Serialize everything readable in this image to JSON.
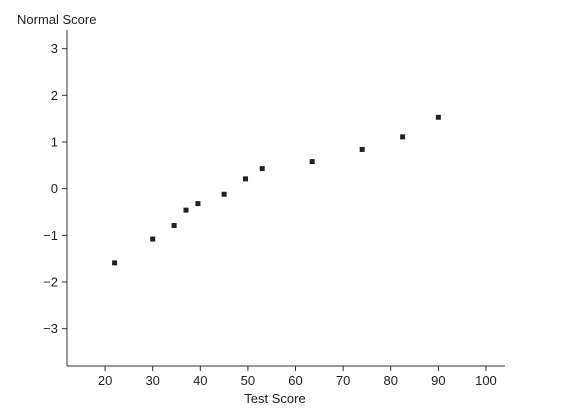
{
  "chart_data": {
    "type": "scatter",
    "title": "",
    "xlabel": "Test Score",
    "ylabel": "Normal Score",
    "xlim": [
      12,
      104
    ],
    "ylim": [
      -3.8,
      3.4
    ],
    "xticks": [
      20,
      30,
      40,
      50,
      60,
      70,
      80,
      90,
      100
    ],
    "xtick_labels": [
      "20",
      "30",
      "40",
      "50",
      "60",
      "70",
      "80",
      "90",
      "100"
    ],
    "yticks": [
      3,
      2,
      1,
      0,
      -1,
      -2,
      -3
    ],
    "ytick_labels": [
      "3",
      "2",
      "1",
      "0",
      "−1",
      "−2",
      "−3"
    ],
    "grid": false,
    "series": [
      {
        "color": "#222222",
        "points": [
          {
            "x": 22,
            "y": -1.59
          },
          {
            "x": 30,
            "y": -1.08
          },
          {
            "x": 34.5,
            "y": -0.79
          },
          {
            "x": 37,
            "y": -0.46
          },
          {
            "x": 39.5,
            "y": -0.32
          },
          {
            "x": 45,
            "y": -0.12
          },
          {
            "x": 49.5,
            "y": 0.21
          },
          {
            "x": 53,
            "y": 0.43
          },
          {
            "x": 63.5,
            "y": 0.58
          },
          {
            "x": 74,
            "y": 0.84
          },
          {
            "x": 82.5,
            "y": 1.11
          },
          {
            "x": 90,
            "y": 1.53
          }
        ]
      }
    ]
  }
}
